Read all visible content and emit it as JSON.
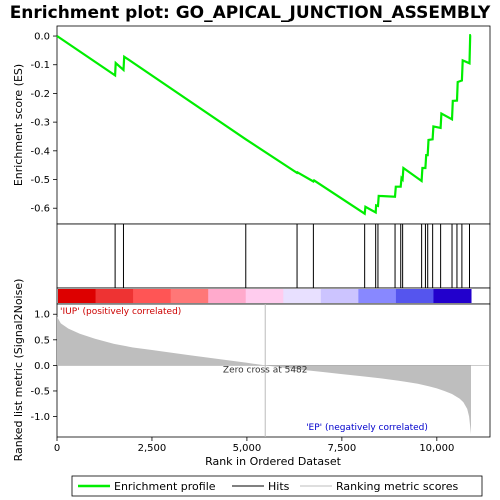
{
  "chart_data": {
    "type": "line",
    "title": "Enrichment plot: GO_APICAL_JUNCTION_ASSEMBLY",
    "top_panel": {
      "ylabel": "Enrichment score (ES)",
      "ylim": [
        -0.655,
        0.035
      ],
      "yticks": [
        0.0,
        -0.1,
        -0.2,
        -0.3,
        -0.4,
        -0.5,
        -0.6
      ],
      "ytick_labels": [
        "0.0",
        "-0.1",
        "-0.2",
        "-0.3",
        "-0.4",
        "-0.5",
        "-0.6"
      ],
      "series": [
        {
          "name": "Enrichment profile",
          "color": "#00ee00",
          "x": [
            0,
            1530,
            1545,
            1750,
            1770,
            4970,
            6320,
            6330,
            6750,
            6770,
            8100,
            8120,
            8390,
            8400,
            8450,
            8470,
            8900,
            8920,
            9050,
            9070,
            9100,
            9120,
            9600,
            9620,
            9700,
            9720,
            9760,
            9780,
            9890,
            9910,
            10100,
            10120,
            10400,
            10420,
            10530,
            10550,
            10660,
            10680,
            10860,
            10880,
            10900
          ],
          "y": [
            0.0,
            -0.137,
            -0.094,
            -0.118,
            -0.072,
            -0.36,
            -0.477,
            -0.475,
            -0.507,
            -0.503,
            -0.619,
            -0.595,
            -0.615,
            -0.59,
            -0.592,
            -0.557,
            -0.56,
            -0.525,
            -0.525,
            -0.495,
            -0.5,
            -0.46,
            -0.505,
            -0.46,
            -0.46,
            -0.415,
            -0.415,
            -0.362,
            -0.36,
            -0.315,
            -0.32,
            -0.27,
            -0.29,
            -0.226,
            -0.225,
            -0.16,
            -0.155,
            -0.085,
            -0.095,
            0.003,
            0.003
          ]
        }
      ]
    },
    "hits_x": [
      1530,
      1750,
      4970,
      6320,
      6750,
      8100,
      8390,
      8450,
      8900,
      9050,
      9100,
      9600,
      9700,
      9760,
      9890,
      10100,
      10400,
      10530,
      10660,
      10860
    ],
    "bottom_panel": {
      "ylabel": "Ranked list metric (Signal2Noise)",
      "ylim": [
        -1.4,
        1.2
      ],
      "yticks": [
        1.0,
        0.5,
        0.0,
        -0.5,
        -1.0
      ],
      "ytick_labels": [
        "1.0",
        "0.5",
        "0.0",
        "-0.5",
        "-1.0"
      ],
      "xlabel": "Rank in Ordered Dataset",
      "xlim": [
        0,
        11400
      ],
      "xticks": [
        0,
        2500,
        5000,
        7500,
        10000
      ],
      "xtick_labels": [
        "0",
        "2,500",
        "5,000",
        "7,500",
        "10,000"
      ],
      "metric_x": [
        0,
        100,
        300,
        600,
        1000,
        1500,
        2000,
        2500,
        3000,
        3500,
        4000,
        4500,
        5000,
        5482,
        6000,
        6500,
        7000,
        7500,
        8000,
        8500,
        9000,
        9500,
        9800,
        10000,
        10200,
        10400,
        10600,
        10700,
        10800,
        10850,
        10880,
        10900
      ],
      "metric_y": [
        0.95,
        0.82,
        0.72,
        0.62,
        0.52,
        0.42,
        0.35,
        0.3,
        0.25,
        0.2,
        0.15,
        0.1,
        0.05,
        0.0,
        -0.05,
        -0.09,
        -0.13,
        -0.17,
        -0.21,
        -0.25,
        -0.3,
        -0.36,
        -0.41,
        -0.45,
        -0.5,
        -0.56,
        -0.65,
        -0.72,
        -0.85,
        -1.0,
        -1.2,
        -1.35
      ],
      "zero_cross_label": "Zero cross at 5482",
      "zero_cross_x": 5482,
      "pos_label": "'IUP' (positively correlated)",
      "neg_label": "'EP' (negatively correlated)"
    },
    "colors": {
      "profile": "#00ee00",
      "hits": "#000000",
      "metric_fill": "#bebebe",
      "pos_label": "#cc0000",
      "neg_label": "#0000cc"
    },
    "legend": {
      "placement": "bottom",
      "items": [
        {
          "label": "Enrichment profile",
          "color": "#00ee00"
        },
        {
          "label": "Hits",
          "color": "#000000"
        },
        {
          "label": "Ranking metric scores",
          "color": "#bebebe"
        }
      ]
    },
    "gradient_stops": [
      "#dd0000",
      "#ee3333",
      "#ff5555",
      "#ff7777",
      "#ffaacc",
      "#ffccee",
      "#e8e0ff",
      "#ccc4ff",
      "#8888ff",
      "#5555ee",
      "#2200cc"
    ]
  }
}
